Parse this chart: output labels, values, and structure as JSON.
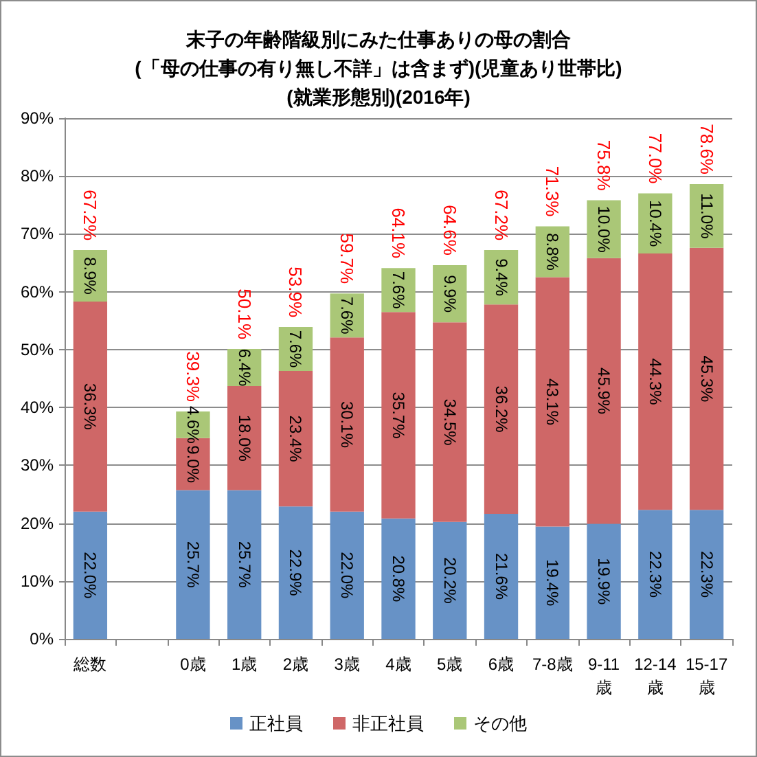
{
  "chart_data": {
    "type": "bar",
    "title": "末子の年齢階級別にみた仕事ありの母の割合\n(「母の仕事の有り無し不詳」は含まず)(児童あり世帯比)\n(就業形態別)(2016年)",
    "categories": [
      "総数",
      null,
      "0歳",
      "1歳",
      "2歳",
      "3歳",
      "4歳",
      "5歳",
      "6歳",
      "7-8歳",
      "9-11歳",
      "12-14歳",
      "15-17歳"
    ],
    "stacked": true,
    "series": [
      {
        "name": "正社員",
        "color": "#6792c6",
        "values": [
          22.0,
          null,
          25.7,
          25.7,
          22.9,
          22.0,
          20.8,
          20.2,
          21.6,
          19.4,
          19.9,
          22.3,
          22.3
        ],
        "value_labels": [
          "22.0%",
          null,
          "25.7%",
          "25.7%",
          "22.9%",
          "22.0%",
          "20.8%",
          "20.2%",
          "21.6%",
          "19.4%",
          "19.9%",
          "22.3%",
          "22.3%"
        ]
      },
      {
        "name": "非正社員",
        "color": "#cf6767",
        "values": [
          36.3,
          null,
          9.0,
          18.0,
          23.4,
          30.1,
          35.7,
          34.5,
          36.2,
          43.1,
          45.9,
          44.3,
          45.3
        ],
        "value_labels": [
          "36.3%",
          null,
          "9.0%",
          "18.0%",
          "23.4%",
          "30.1%",
          "35.7%",
          "34.5%",
          "36.2%",
          "43.1%",
          "45.9%",
          "44.3%",
          "45.3%"
        ]
      },
      {
        "name": "その他",
        "color": "#aac777",
        "values": [
          8.9,
          null,
          4.6,
          6.4,
          7.6,
          7.6,
          7.6,
          9.9,
          9.4,
          8.8,
          10.0,
          10.4,
          11.0
        ],
        "value_labels": [
          "8.9%",
          null,
          "4.6%",
          "6.4%",
          "7.6%",
          "7.6%",
          "7.6%",
          "9.9%",
          "9.4%",
          "8.8%",
          "10.0%",
          "10.4%",
          "11.0%"
        ]
      }
    ],
    "totals": [
      "67.2%",
      null,
      "39.3%",
      "50.1%",
      "53.9%",
      "59.7%",
      "64.1%",
      "64.6%",
      "67.2%",
      "71.3%",
      "75.8%",
      "77.0%",
      "78.6%"
    ],
    "ylim": [
      0,
      90
    ],
    "yticks": [
      {
        "value": 0,
        "label": "0%"
      },
      {
        "value": 10,
        "label": "10%"
      },
      {
        "value": 20,
        "label": "20%"
      },
      {
        "value": 30,
        "label": "30%"
      },
      {
        "value": 40,
        "label": "40%"
      },
      {
        "value": 50,
        "label": "50%"
      },
      {
        "value": 60,
        "label": "60%"
      },
      {
        "value": 70,
        "label": "70%"
      },
      {
        "value": 80,
        "label": "80%"
      },
      {
        "value": 90,
        "label": "90%"
      }
    ],
    "grid": "y",
    "legend": "bottom"
  }
}
